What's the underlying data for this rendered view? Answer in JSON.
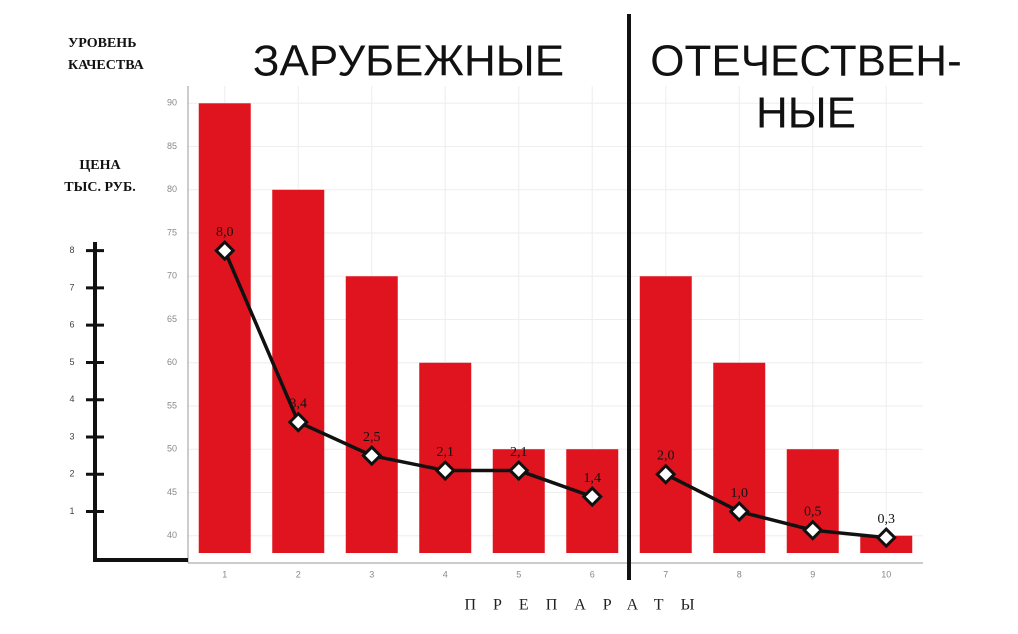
{
  "chart_data": {
    "type": "bar",
    "ylabel": [
      "УРОВЕНЬ",
      "КАЧЕСТВА"
    ],
    "y2label": [
      "ЦЕНА",
      "ТЫС. РУБ."
    ],
    "xlabel": "ПРЕПАРАТЫ",
    "group_labels": [
      [
        "ЗАРУБЕЖНЫЕ"
      ],
      [
        "ОТЕЧЕСТВЕН-",
        "НЫЕ"
      ]
    ],
    "categories": [
      "1",
      "2",
      "3",
      "4",
      "5",
      "6",
      "7",
      "8",
      "9",
      "10"
    ],
    "values": [
      90,
      80,
      70,
      60,
      50,
      50,
      70,
      60,
      50,
      40
    ],
    "color": "#e0141e",
    "ylim": [
      38,
      92
    ],
    "yticks": [
      40,
      45,
      50,
      55,
      60,
      65,
      70,
      75,
      80,
      85,
      90
    ],
    "y2lim": [
      -0.3,
      8.5
    ],
    "y2ticks": [
      1,
      2,
      3,
      4,
      5,
      6,
      7,
      8
    ],
    "grid": true,
    "series": [
      {
        "type": "line",
        "axis": "y2",
        "color": "#111111",
        "values": [
          8.0,
          3.4,
          2.5,
          2.1,
          2.1,
          1.4,
          null,
          null,
          null,
          null
        ],
        "value_labels": [
          "8,0",
          "3,4",
          "2,5",
          "2,1",
          "2,1",
          "1,4",
          null,
          null,
          null,
          null
        ]
      },
      {
        "type": "line",
        "axis": "y2",
        "color": "#111111",
        "values": [
          null,
          null,
          null,
          null,
          null,
          null,
          2.0,
          1.0,
          0.5,
          0.3
        ],
        "value_labels": [
          null,
          null,
          null,
          null,
          null,
          null,
          "2,0",
          "1,0",
          "0,5",
          "0,3"
        ]
      }
    ]
  }
}
